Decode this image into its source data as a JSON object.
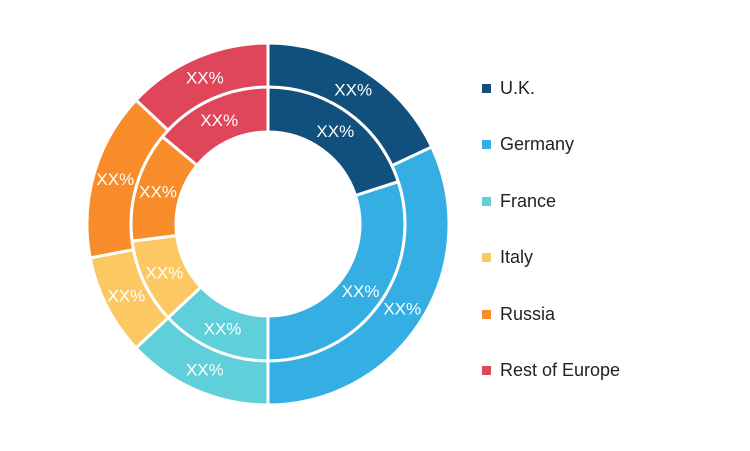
{
  "chart_data": {
    "type": "donut",
    "rings": [
      "inner",
      "outer"
    ],
    "categories": [
      "U.K.",
      "Germany",
      "France",
      "Italy",
      "Russia",
      "Rest of Europe"
    ],
    "colors": [
      "#11507c",
      "#35aee3",
      "#5fcfd9",
      "#fbc864",
      "#f98c2a",
      "#e0465a"
    ],
    "series": [
      {
        "values": [
          20,
          30,
          13,
          10,
          13,
          14
        ],
        "labels": [
          "XX%",
          "XX%",
          "XX%",
          "XX%",
          "XX%",
          "XX%"
        ]
      },
      {
        "values": [
          18,
          32,
          13,
          9,
          15,
          13
        ],
        "labels": [
          "XX%",
          "XX%",
          "XX%",
          "XX%",
          "XX%",
          "XX%"
        ]
      }
    ],
    "legend_position": "right"
  }
}
